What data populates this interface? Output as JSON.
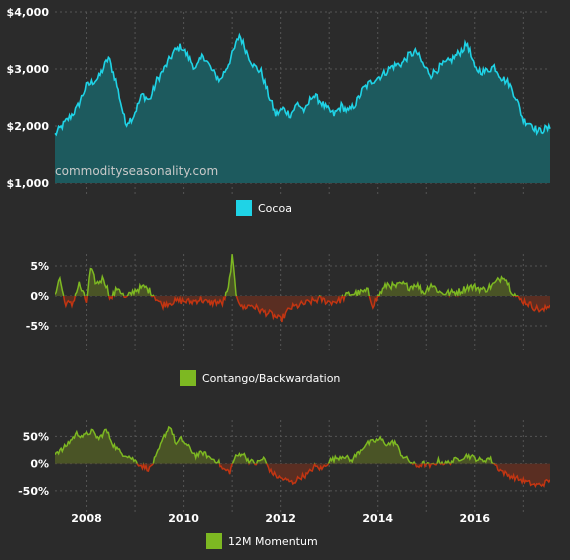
{
  "watermark": "commodityseasonality.com",
  "colors": {
    "background": "#2b2b2b",
    "grid": "#555555",
    "text": "#ffffff",
    "cocoa_line": "#1fd3e6",
    "cocoa_fill": "#1d5a5e",
    "positive_line": "#7db822",
    "positive_fill": "#4a5426",
    "negative_line": "#c23512",
    "negative_fill": "#5a2e22"
  },
  "chart_data": [
    {
      "type": "area",
      "series": [
        {
          "name": "Cocoa",
          "color": "#1fd3e6"
        }
      ],
      "y_tick_labels": [
        "$4,000",
        "$3,000",
        "$2,000",
        "$1,000"
      ],
      "y_ticks": [
        4000,
        3000,
        2000,
        1000
      ],
      "ylim": [
        1000,
        4000
      ],
      "xlim": [
        2007.35,
        2017.55
      ],
      "legend_label": "Cocoa",
      "legend_placement": "bottom-center",
      "knots": [
        [
          2007.35,
          1850
        ],
        [
          2007.55,
          2050
        ],
        [
          2007.8,
          2300
        ],
        [
          2008.0,
          2700
        ],
        [
          2008.25,
          2850
        ],
        [
          2008.45,
          3200
        ],
        [
          2008.6,
          2800
        ],
        [
          2008.8,
          2050
        ],
        [
          2008.95,
          2150
        ],
        [
          2009.15,
          2550
        ],
        [
          2009.3,
          2450
        ],
        [
          2009.45,
          2800
        ],
        [
          2009.6,
          3000
        ],
        [
          2009.8,
          3300
        ],
        [
          2009.95,
          3400
        ],
        [
          2010.1,
          3200
        ],
        [
          2010.25,
          3000
        ],
        [
          2010.4,
          3250
        ],
        [
          2010.6,
          2950
        ],
        [
          2010.75,
          2800
        ],
        [
          2010.9,
          3050
        ],
        [
          2011.0,
          3250
        ],
        [
          2011.15,
          3600
        ],
        [
          2011.3,
          3300
        ],
        [
          2011.45,
          3050
        ],
        [
          2011.6,
          2950
        ],
        [
          2011.75,
          2550
        ],
        [
          2011.9,
          2200
        ],
        [
          2012.05,
          2300
        ],
        [
          2012.2,
          2200
        ],
        [
          2012.35,
          2400
        ],
        [
          2012.5,
          2250
        ],
        [
          2012.65,
          2550
        ],
        [
          2012.8,
          2450
        ],
        [
          2012.95,
          2300
        ],
        [
          2013.1,
          2200
        ],
        [
          2013.25,
          2350
        ],
        [
          2013.4,
          2250
        ],
        [
          2013.55,
          2400
        ],
        [
          2013.7,
          2650
        ],
        [
          2013.9,
          2800
        ],
        [
          2014.1,
          2900
        ],
        [
          2014.3,
          3050
        ],
        [
          2014.5,
          3100
        ],
        [
          2014.65,
          3250
        ],
        [
          2014.8,
          3300
        ],
        [
          2014.95,
          3050
        ],
        [
          2015.1,
          2900
        ],
        [
          2015.3,
          3050
        ],
        [
          2015.5,
          3150
        ],
        [
          2015.7,
          3300
        ],
        [
          2015.85,
          3450
        ],
        [
          2016.0,
          3000
        ],
        [
          2016.2,
          2950
        ],
        [
          2016.4,
          3050
        ],
        [
          2016.55,
          2850
        ],
        [
          2016.7,
          2750
        ],
        [
          2016.85,
          2500
        ],
        [
          2017.0,
          2100
        ],
        [
          2017.15,
          2050
        ],
        [
          2017.3,
          1900
        ],
        [
          2017.45,
          1950
        ],
        [
          2017.55,
          1950
        ]
      ]
    },
    {
      "type": "area",
      "series": [
        {
          "name": "Contango/Backwardation"
        }
      ],
      "y_tick_labels": [
        "5%",
        "0%",
        "-5%"
      ],
      "y_ticks": [
        5,
        0,
        -5
      ],
      "ylim": [
        -7,
        7
      ],
      "xlim": [
        2007.35,
        2017.55
      ],
      "legend_label": "Contango/Backwardation",
      "legend_placement": "bottom-center",
      "knots": [
        [
          2007.35,
          0.5
        ],
        [
          2007.45,
          3.0
        ],
        [
          2007.55,
          -1.0
        ],
        [
          2007.7,
          -1.5
        ],
        [
          2007.85,
          2.0
        ],
        [
          2008.0,
          -1.0
        ],
        [
          2008.08,
          4.5
        ],
        [
          2008.2,
          2.0
        ],
        [
          2008.35,
          3.0
        ],
        [
          2008.5,
          -0.5
        ],
        [
          2008.65,
          1.5
        ],
        [
          2008.8,
          -0.5
        ],
        [
          2009.0,
          1.0
        ],
        [
          2009.2,
          1.5
        ],
        [
          2009.35,
          0.5
        ],
        [
          2009.55,
          -1.5
        ],
        [
          2009.75,
          -1.0
        ],
        [
          2009.95,
          -0.8
        ],
        [
          2010.15,
          -1.0
        ],
        [
          2010.35,
          -0.5
        ],
        [
          2010.5,
          -1.2
        ],
        [
          2010.65,
          -1.0
        ],
        [
          2010.8,
          -1.2
        ],
        [
          2010.92,
          1.0
        ],
        [
          2011.0,
          6.5
        ],
        [
          2011.08,
          0.5
        ],
        [
          2011.2,
          -2.0
        ],
        [
          2011.4,
          -1.5
        ],
        [
          2011.6,
          -2.5
        ],
        [
          2011.8,
          -3.0
        ],
        [
          2012.0,
          -4.0
        ],
        [
          2012.2,
          -2.0
        ],
        [
          2012.4,
          -1.5
        ],
        [
          2012.6,
          -1.0
        ],
        [
          2012.8,
          -0.5
        ],
        [
          2013.0,
          -1.0
        ],
        [
          2013.2,
          -0.8
        ],
        [
          2013.4,
          0.3
        ],
        [
          2013.6,
          0.5
        ],
        [
          2013.8,
          0.8
        ],
        [
          2013.9,
          -1.5
        ],
        [
          2014.05,
          0.5
        ],
        [
          2014.2,
          2.0
        ],
        [
          2014.35,
          1.5
        ],
        [
          2014.5,
          2.0
        ],
        [
          2014.65,
          1.5
        ],
        [
          2014.8,
          2.0
        ],
        [
          2014.95,
          0.5
        ],
        [
          2015.1,
          2.0
        ],
        [
          2015.3,
          0.5
        ],
        [
          2015.5,
          0.5
        ],
        [
          2015.7,
          0.8
        ],
        [
          2015.85,
          1.5
        ],
        [
          2016.0,
          1.5
        ],
        [
          2016.2,
          1.0
        ],
        [
          2016.4,
          2.0
        ],
        [
          2016.6,
          3.5
        ],
        [
          2016.75,
          1.0
        ],
        [
          2016.9,
          -0.5
        ],
        [
          2017.05,
          -1.0
        ],
        [
          2017.25,
          -2.0
        ],
        [
          2017.4,
          -2.5
        ],
        [
          2017.55,
          -1.5
        ]
      ]
    },
    {
      "type": "area",
      "series": [
        {
          "name": "12M Momentum"
        }
      ],
      "y_tick_labels": [
        "50%",
        "0%",
        "-50%"
      ],
      "y_ticks": [
        50,
        0,
        -50
      ],
      "ylim": [
        -65,
        80
      ],
      "xlim": [
        2007.35,
        2017.55
      ],
      "legend_label": "12M Momentum",
      "legend_placement": "bottom-center",
      "knots": [
        [
          2007.35,
          20
        ],
        [
          2007.5,
          25
        ],
        [
          2007.65,
          40
        ],
        [
          2007.8,
          55
        ],
        [
          2007.95,
          50
        ],
        [
          2008.1,
          60
        ],
        [
          2008.25,
          45
        ],
        [
          2008.4,
          62
        ],
        [
          2008.55,
          35
        ],
        [
          2008.7,
          20
        ],
        [
          2008.85,
          15
        ],
        [
          2009.0,
          5
        ],
        [
          2009.15,
          -5
        ],
        [
          2009.3,
          -10
        ],
        [
          2009.45,
          15
        ],
        [
          2009.6,
          50
        ],
        [
          2009.72,
          70
        ],
        [
          2009.85,
          35
        ],
        [
          2009.95,
          45
        ],
        [
          2010.1,
          30
        ],
        [
          2010.25,
          15
        ],
        [
          2010.4,
          20
        ],
        [
          2010.55,
          10
        ],
        [
          2010.7,
          5
        ],
        [
          2010.8,
          -10
        ],
        [
          2010.95,
          -15
        ],
        [
          2011.05,
          10
        ],
        [
          2011.2,
          20
        ],
        [
          2011.35,
          5
        ],
        [
          2011.5,
          0
        ],
        [
          2011.65,
          10
        ],
        [
          2011.8,
          -15
        ],
        [
          2011.95,
          -25
        ],
        [
          2012.1,
          -30
        ],
        [
          2012.25,
          -35
        ],
        [
          2012.4,
          -25
        ],
        [
          2012.55,
          -20
        ],
        [
          2012.7,
          -5
        ],
        [
          2012.85,
          -10
        ],
        [
          2013.0,
          5
        ],
        [
          2013.15,
          10
        ],
        [
          2013.3,
          15
        ],
        [
          2013.45,
          5
        ],
        [
          2013.6,
          20
        ],
        [
          2013.75,
          35
        ],
        [
          2013.9,
          40
        ],
        [
          2014.05,
          45
        ],
        [
          2014.2,
          35
        ],
        [
          2014.35,
          40
        ],
        [
          2014.5,
          15
        ],
        [
          2014.65,
          5
        ],
        [
          2014.8,
          -5
        ],
        [
          2014.95,
          0
        ],
        [
          2015.1,
          -5
        ],
        [
          2015.25,
          5
        ],
        [
          2015.4,
          0
        ],
        [
          2015.55,
          5
        ],
        [
          2015.7,
          10
        ],
        [
          2015.85,
          15
        ],
        [
          2016.0,
          10
        ],
        [
          2016.15,
          5
        ],
        [
          2016.3,
          10
        ],
        [
          2016.5,
          -10
        ],
        [
          2016.65,
          -20
        ],
        [
          2016.8,
          -25
        ],
        [
          2016.95,
          -30
        ],
        [
          2017.1,
          -35
        ],
        [
          2017.25,
          -40
        ],
        [
          2017.4,
          -38
        ],
        [
          2017.55,
          -30
        ]
      ]
    }
  ],
  "x_axis": {
    "tick_labels": [
      "2008",
      "2010",
      "2012",
      "2014",
      "2016"
    ],
    "ticks": [
      2008,
      2010,
      2012,
      2014,
      2016
    ],
    "grid_years": [
      2008,
      2009,
      2010,
      2011,
      2012,
      2013,
      2014,
      2015,
      2016,
      2017
    ]
  }
}
